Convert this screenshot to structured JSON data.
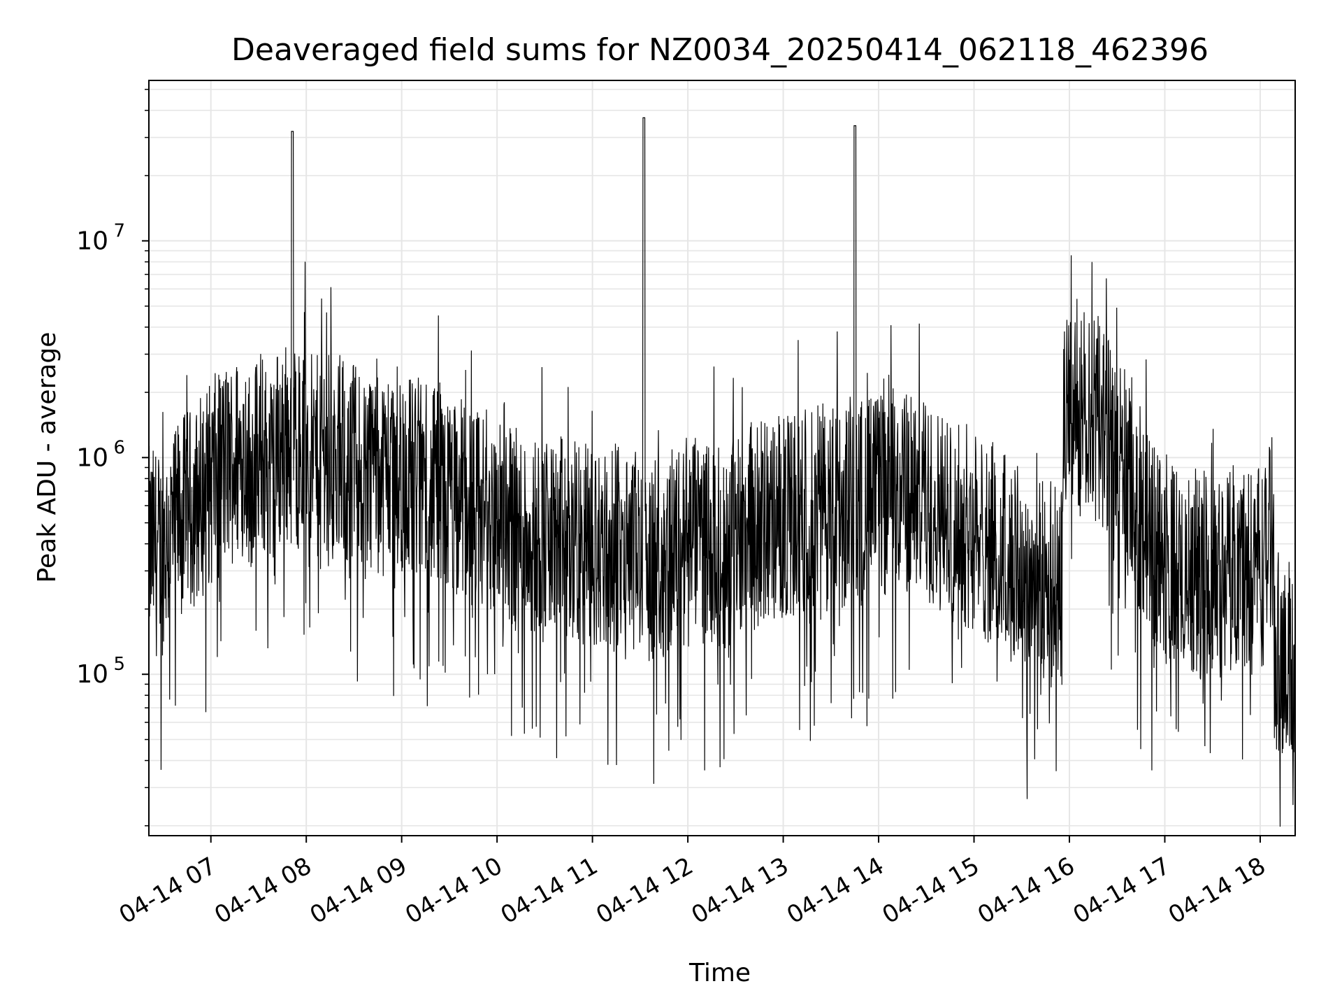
{
  "chart_data": {
    "type": "line",
    "title": "Deaveraged field sums for NZ0034_20250414_062118_462396",
    "xlabel": "Time",
    "ylabel": "Peak ADU - average",
    "yscale": "log",
    "ylim": [
      18000,
      55000000
    ],
    "xlim": [
      "2025-04-14 06:21",
      "2025-04-14 18:22"
    ],
    "grid": true,
    "line_color": "#000000",
    "grid_color": "#e6e6e6",
    "x_ticks": [
      "2025-04-14 07:00",
      "2025-04-14 08:00",
      "2025-04-14 09:00",
      "2025-04-14 10:00",
      "2025-04-14 11:00",
      "2025-04-14 12:00",
      "2025-04-14 13:00",
      "2025-04-14 14:00",
      "2025-04-14 15:00",
      "2025-04-14 16:00",
      "2025-04-14 17:00",
      "2025-04-14 18:00"
    ],
    "x_tick_labels": [
      "04-14 07",
      "04-14 08",
      "04-14 09",
      "04-14 10",
      "04-14 11",
      "04-14 12",
      "04-14 13",
      "04-14 14",
      "04-14 15",
      "04-14 16",
      "04-14 17",
      "04-14 18"
    ],
    "y_ticks": [
      {
        "value": 100000,
        "base": "10",
        "exp": "5"
      },
      {
        "value": 1000000,
        "base": "10",
        "exp": "6"
      },
      {
        "value": 10000000,
        "base": "10",
        "exp": "7"
      }
    ],
    "series": [
      {
        "x_start": "2025-04-14 06:21",
        "x_end": "2025-04-14 18:22",
        "values": [
          380000,
          360000,
          420000,
          450000,
          520000,
          560000,
          600000,
          680000,
          750000,
          820000,
          900000,
          950000,
          1000000,
          1050000,
          900000,
          1100000,
          1000000,
          850000,
          1100000,
          1200000,
          32000000,
          1100000,
          1300000,
          1000000,
          1200000,
          1100000,
          900000,
          1000000,
          800000,
          1000000,
          950000,
          900000,
          1000000,
          850000,
          900000,
          880000,
          820000,
          850000,
          800000,
          780000,
          700000,
          720000,
          650000,
          600000,
          680000,
          620000,
          550000,
          580000,
          520000,
          500000,
          480000,
          510000,
          460000,
          450000,
          440000,
          470000,
          420000,
          400000,
          430000,
          380000,
          400000,
          390000,
          410000,
          370000,
          380000,
          360000,
          400000,
          350000,
          380000,
          360000,
          37000000,
          340000,
          380000,
          360000,
          390000,
          400000,
          380000,
          420000,
          410000,
          430000,
          400000,
          380000,
          420000,
          450000,
          480000,
          500000,
          470000,
          520000,
          500000,
          540000,
          520000,
          560000,
          550000,
          580000,
          560000,
          600000,
          580000,
          620000,
          600000,
          650000,
          34000000,
          640000,
          680000,
          700000,
          660000,
          720000,
          700000,
          680000,
          720000,
          650000,
          620000,
          600000,
          580000,
          550000,
          520000,
          500000,
          480000,
          450000,
          420000,
          400000,
          380000,
          360000,
          340000,
          320000,
          300000,
          290000,
          280000,
          270000,
          260000,
          250000,
          1500000,
          1800000,
          1600000,
          1700000,
          1500000,
          1400000,
          1200000,
          1000000,
          900000,
          800000,
          600000,
          500000,
          420000,
          380000,
          350000,
          320000,
          300000,
          280000,
          300000,
          270000,
          290000,
          310000,
          280000,
          300000,
          330000,
          310000,
          290000,
          350000,
          320000,
          480000,
          130000,
          100000,
          110000
        ]
      }
    ],
    "x_ticks_display_note": ""
  }
}
